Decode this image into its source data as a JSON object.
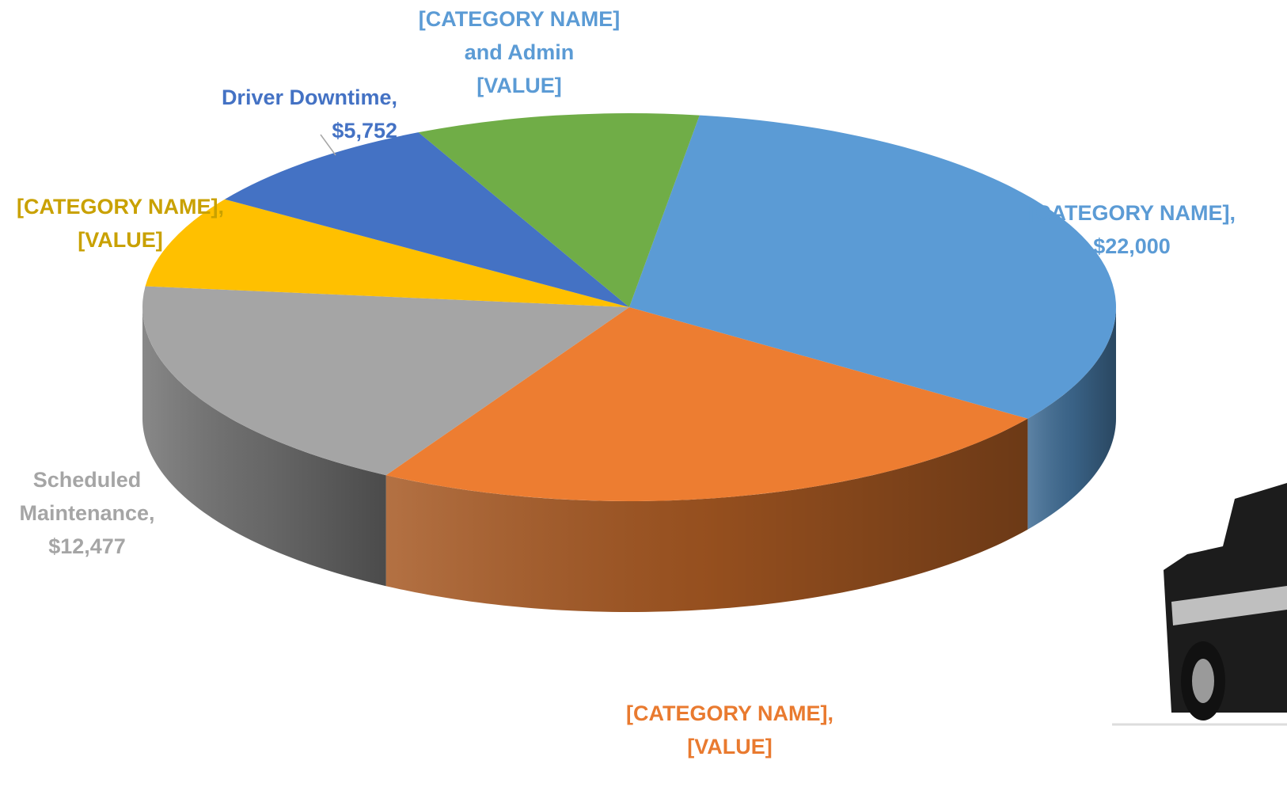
{
  "chart_data": {
    "type": "pie3d",
    "categories": [
      "[CATEGORY NAME],",
      "[CATEGORY NAME],",
      "Scheduled Maintenance,",
      "[CATEGORY NAME],",
      "Driver Downtime,",
      "[CATEGORY NAME] and Admin"
    ],
    "values": [
      22000,
      16000,
      12477,
      5200,
      5752,
      6400
    ],
    "value_labels": [
      "$22,000",
      "[VALUE]",
      "$12,477",
      "[VALUE]",
      "$5,752",
      "[VALUE]"
    ],
    "colors": [
      "#5b9bd5",
      "#ed7d31",
      "#a5a5a5",
      "#ffc000",
      "#4472c4",
      "#70ad47"
    ]
  }
}
